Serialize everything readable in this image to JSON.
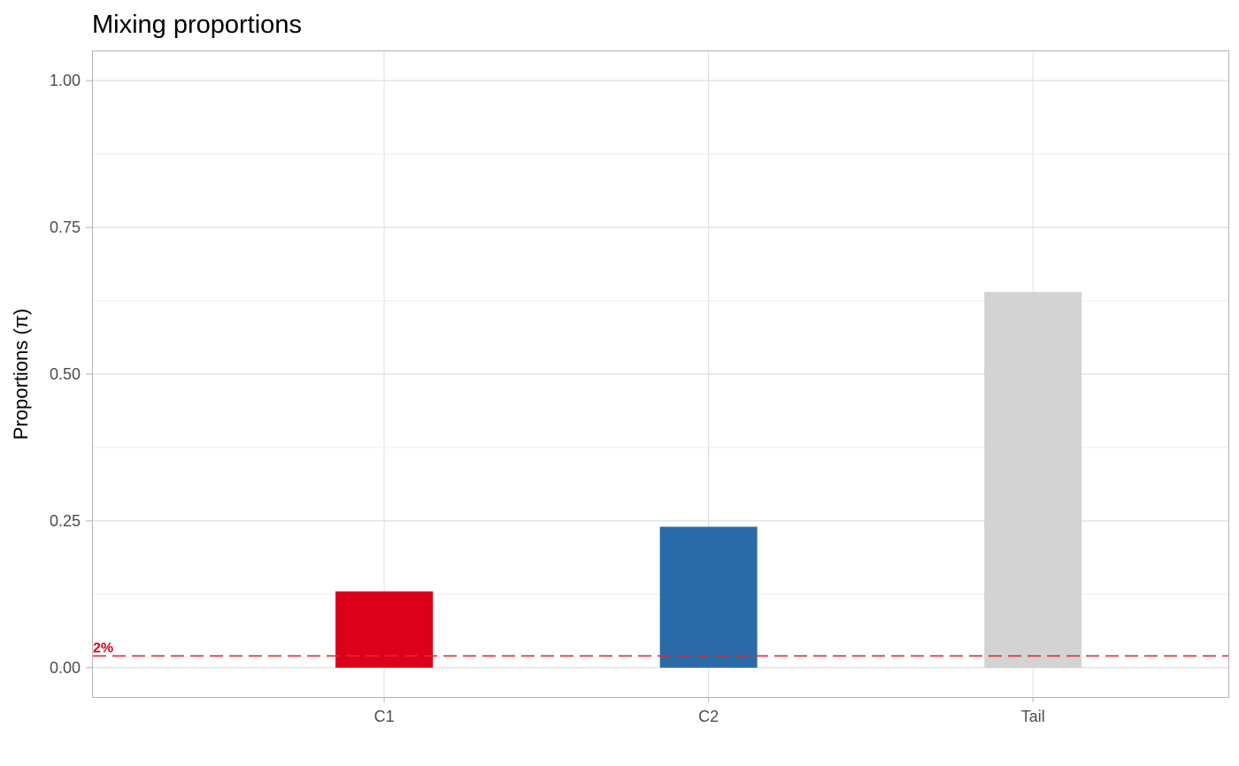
{
  "chart_data": {
    "type": "bar",
    "title": "Mixing proportions",
    "xlabel": "",
    "ylabel": "Proportions (π)",
    "categories": [
      "C1",
      "C2",
      "Tail"
    ],
    "values": [
      0.13,
      0.24,
      0.64
    ],
    "bar_colors": [
      "#dc001a",
      "#2b6aa9",
      "#d3d3d3"
    ],
    "ylim": [
      -0.05,
      1.05
    ],
    "yticks": [
      0.0,
      0.25,
      0.5,
      0.75,
      1.0
    ],
    "ytick_labels": [
      "0.00",
      "0.25",
      "0.50",
      "0.75",
      "1.00"
    ],
    "grid": true,
    "legend": "none",
    "reference_line": {
      "value": 0.02,
      "label": "2%",
      "color": "#e8262c",
      "style": "dashed"
    }
  }
}
